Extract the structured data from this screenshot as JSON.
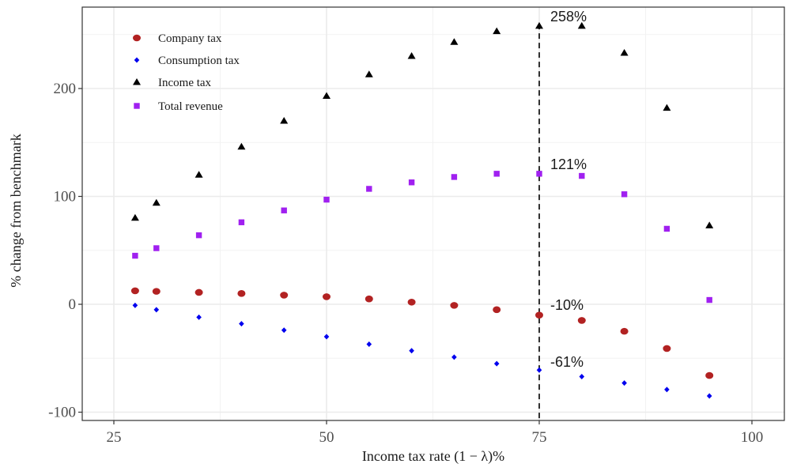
{
  "chart_data": {
    "type": "scatter",
    "title": "",
    "xlabel": "Income tax rate (1 − λ)%",
    "ylabel": "% change from benchmark",
    "xlim": [
      22,
      104
    ],
    "ylim": [
      -104,
      270
    ],
    "x_ticks": [
      25,
      50,
      75,
      100
    ],
    "y_ticks": [
      -100,
      0,
      100,
      200
    ],
    "x_tick_labels": [
      "25",
      "50",
      "75",
      "100"
    ],
    "y_tick_labels": [
      "-100",
      "0",
      "100",
      "200"
    ],
    "grid": true,
    "legend_position": "top-left",
    "x": [
      27.5,
      30,
      35,
      40,
      45,
      50,
      55,
      60,
      65,
      70,
      75,
      80,
      85,
      90,
      95
    ],
    "series": [
      {
        "name": "Company tax",
        "marker": "circle",
        "color": "#b22222",
        "values": [
          12.5,
          12,
          11,
          10,
          8.5,
          7,
          5,
          2,
          -1,
          -5,
          -10,
          -15,
          -25,
          -41,
          -66
        ]
      },
      {
        "name": "Consumption tax",
        "marker": "diamond",
        "color": "#0000ee",
        "values": [
          -1,
          -5,
          -12,
          -18,
          -24,
          -30,
          -37,
          -43,
          -49,
          -55,
          -61,
          -67,
          -73,
          -79,
          -85
        ]
      },
      {
        "name": "Income tax",
        "marker": "triangle",
        "color": "#000000",
        "values": [
          80,
          94,
          120,
          146,
          170,
          193,
          213,
          230,
          243,
          253,
          258,
          258,
          233,
          182,
          73
        ]
      },
      {
        "name": "Total revenue",
        "marker": "square",
        "color": "#a020f0",
        "values": [
          45,
          52,
          64,
          76,
          87,
          97,
          107,
          113,
          118,
          121,
          121,
          119,
          102,
          70,
          4
        ]
      }
    ],
    "reference_line": {
      "x": 75,
      "style": "dashed",
      "color": "#000000"
    },
    "annotations": [
      {
        "text": "258%",
        "x": 75,
        "y": 258
      },
      {
        "text": "121%",
        "x": 75,
        "y": 121
      },
      {
        "text": "-10%",
        "x": 75,
        "y": -10
      },
      {
        "text": "-61%",
        "x": 75,
        "y": -61
      }
    ]
  }
}
